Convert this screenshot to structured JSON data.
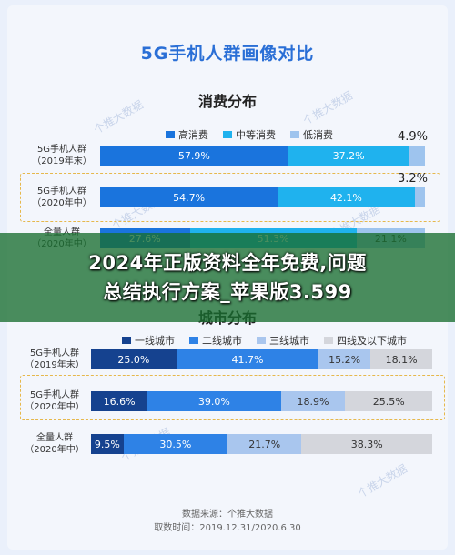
{
  "main_title": "5G手机人群画像对比",
  "watermark": "个推大数据",
  "banner": {
    "line1": "2024年正版资料全年免费,问题",
    "line2": "总结执行方案_苹果版3.599"
  },
  "footer": {
    "source": "数据来源：个推大数据",
    "period": "取数时间：2019.12.31/2020.6.30"
  },
  "chart_data": [
    {
      "type": "bar",
      "orientation": "horizontal-stacked",
      "title": "消费分布",
      "legend_position": "top",
      "categories": [
        [
          "5G手机人群",
          "（2019年末）"
        ],
        [
          "5G手机人群",
          "（2020年中）"
        ],
        [
          "全量人群",
          "（2020年中）"
        ]
      ],
      "series": [
        {
          "name": "高消费",
          "color": "#1a74dd",
          "values": [
            57.9,
            54.7,
            27.6
          ]
        },
        {
          "name": "中等消费",
          "color": "#1fb2ee",
          "values": [
            37.2,
            42.1,
            51.3
          ]
        },
        {
          "name": "低消费",
          "color": "#9ec4ee",
          "values": [
            4.9,
            3.2,
            21.1
          ]
        }
      ],
      "value_labels": [
        [
          "57.9%",
          "37.2%",
          "4.9%"
        ],
        [
          "54.7%",
          "42.1%",
          "3.2%"
        ],
        [
          "27.6%",
          "51.3%",
          "21.1%"
        ]
      ],
      "xlim": [
        0,
        100
      ]
    },
    {
      "type": "bar",
      "orientation": "horizontal-stacked",
      "title": "城市分布",
      "legend_position": "top",
      "categories": [
        [
          "5G手机人群",
          "（2019年末）"
        ],
        [
          "5G手机人群",
          "（2020年中）"
        ],
        [
          "全量人群",
          "（2020年中）"
        ]
      ],
      "series": [
        {
          "name": "一线城市",
          "color": "#15428f",
          "values": [
            25.0,
            16.6,
            9.5
          ]
        },
        {
          "name": "二线城市",
          "color": "#2e82e6",
          "values": [
            41.7,
            39.0,
            30.5
          ]
        },
        {
          "name": "三线城市",
          "color": "#a9c6ee",
          "values": [
            15.2,
            18.9,
            21.7
          ]
        },
        {
          "name": "四线及以下城市",
          "color": "#d4d6dc",
          "values": [
            18.1,
            25.5,
            38.3
          ]
        }
      ],
      "value_labels": [
        [
          "25.0%",
          "41.7%",
          "15.2%",
          "18.1%"
        ],
        [
          "16.6%",
          "39.0%",
          "18.9%",
          "25.5%"
        ],
        [
          "9.5%",
          "30.5%",
          "21.7%",
          "38.3%"
        ]
      ],
      "xlim": [
        0,
        100
      ]
    }
  ]
}
